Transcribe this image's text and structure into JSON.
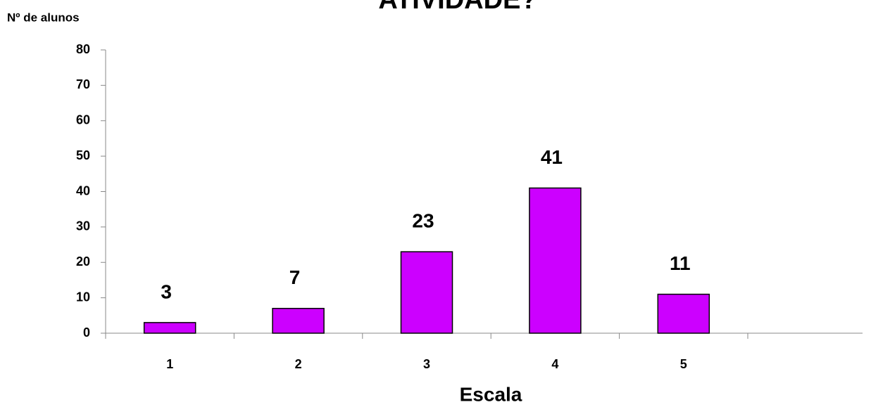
{
  "chart_data": {
    "type": "bar",
    "title": "ATIVIDADE?",
    "y_label": "Nº de alunos",
    "x_label": "Escala",
    "categories": [
      "1",
      "2",
      "3",
      "4",
      "5",
      null
    ],
    "values": [
      3,
      7,
      23,
      41,
      11,
      null
    ],
    "color": "#cc00ff",
    "ylim": [
      0,
      80
    ],
    "yticks": [
      0,
      10,
      20,
      30,
      40,
      50,
      60,
      70,
      80
    ]
  }
}
